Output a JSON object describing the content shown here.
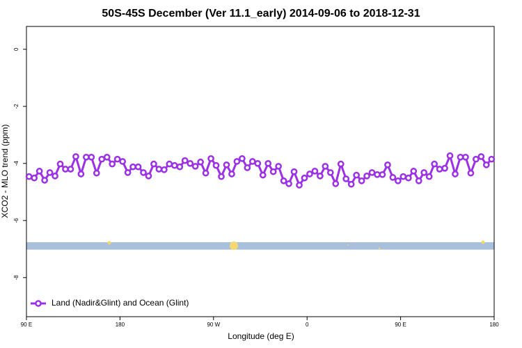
{
  "chart_data": {
    "type": "line",
    "title": "50S-45S December (Ver 11.1_early)   2014-09-06 to 2018-12-31",
    "x_label": "Longitude (deg E)",
    "y_label": "XCO2 - MLO trend (ppm)",
    "xlim": [
      90,
      540
    ],
    "ylim": [
      -9.37,
      0.8
    ],
    "xticks": [
      {
        "value": 90,
        "label": "90 E"
      },
      180,
      {
        "value": 270,
        "label": "90 W"
      },
      {
        "value": 360,
        "label": "0"
      },
      {
        "value": 450,
        "label": "90 E"
      },
      {
        "value": 540,
        "label": "180"
      }
    ],
    "yticks": [
      0,
      -2,
      -4,
      -6,
      -8
    ],
    "legend": "bottom-left",
    "band": {
      "ylim": [
        -7.02,
        -6.76
      ],
      "color": "#a9c0dd"
    },
    "x": [
      92.5,
      97.5,
      102.5,
      107.5,
      112.5,
      117.5,
      122.5,
      127.5,
      132.5,
      137.5,
      142.5,
      147.5,
      152.5,
      157.5,
      162.5,
      167.5,
      172.5,
      177.5,
      182.5,
      187.5,
      192.5,
      197.5,
      202.5,
      207.5,
      212.5,
      217.5,
      222.5,
      227.5,
      232.5,
      237.5,
      242.5,
      247.5,
      252.5,
      257.5,
      262.5,
      267.5,
      272.5,
      277.5,
      282.5,
      287.5,
      292.5,
      297.5,
      302.5,
      307.5,
      312.5,
      317.5,
      322.5,
      327.5,
      332.5,
      337.5,
      342.5,
      347.5,
      352.5,
      357.5,
      362.5,
      367.5,
      372.5,
      377.5,
      382.5,
      387.5,
      392.5,
      397.5,
      402.5,
      407.5,
      412.5,
      417.5,
      422.5,
      427.5,
      432.5,
      437.5,
      442.5,
      447.5,
      452.5,
      457.5,
      462.5,
      467.5,
      472.5,
      477.5,
      482.5,
      487.5,
      492.5,
      497.5,
      502.5,
      507.5,
      512.5,
      517.5,
      522.5,
      527.5,
      532.5,
      537.5
    ],
    "series": [
      {
        "name": "Land (Nadir&Glint) and Ocean (Glint)",
        "color": "#9b30e6",
        "values": [
          -4.46,
          -4.51,
          -4.27,
          -4.59,
          -4.32,
          -4.44,
          -4.02,
          -4.2,
          -4.2,
          -3.76,
          -4.37,
          -3.78,
          -3.78,
          -4.34,
          -3.85,
          -3.78,
          -4.02,
          -3.85,
          -3.93,
          -4.32,
          -4.12,
          -4.12,
          -4.32,
          -4.44,
          -4.02,
          -4.2,
          -4.22,
          -4.02,
          -4.07,
          -4.12,
          -3.9,
          -4.0,
          -4.1,
          -3.95,
          -4.34,
          -3.83,
          -4.07,
          -4.46,
          -4.05,
          -4.37,
          -3.93,
          -3.83,
          -4.15,
          -3.93,
          -4.0,
          -4.41,
          -4.0,
          -4.29,
          -4.1,
          -4.61,
          -4.71,
          -4.29,
          -4.76,
          -4.51,
          -4.37,
          -4.27,
          -4.44,
          -4.1,
          -4.32,
          -4.71,
          -4.02,
          -4.54,
          -4.73,
          -4.41,
          -4.61,
          -4.44,
          -4.32,
          -4.39,
          -4.39,
          -4.05,
          -4.49,
          -4.61,
          -4.46,
          -4.51,
          -4.27,
          -4.61,
          -4.32,
          -4.46,
          -4.02,
          -4.2,
          -4.17,
          -3.73,
          -4.37,
          -3.78,
          -3.78,
          -4.34,
          -3.85,
          -3.76,
          -4.05,
          -3.85
        ]
      }
    ]
  }
}
